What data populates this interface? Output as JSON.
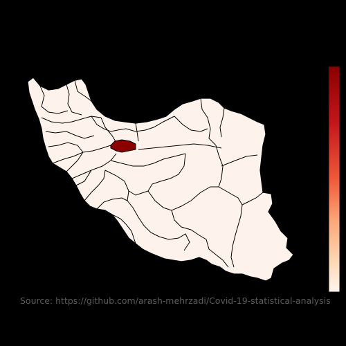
{
  "map": {
    "colors": {
      "low": "#fff5ee",
      "high": "#8b0000",
      "border": "#000000",
      "background": "#000000"
    },
    "colorbar": {
      "colors": [
        "#8b0000",
        "#c4161c",
        "#ef5a3a",
        "#fca577",
        "#fdd4b0",
        "#fff5ee"
      ]
    },
    "source": "Source: https://github.com/arash-mehrzadi/Covid-19-statistical-analysis"
  }
}
